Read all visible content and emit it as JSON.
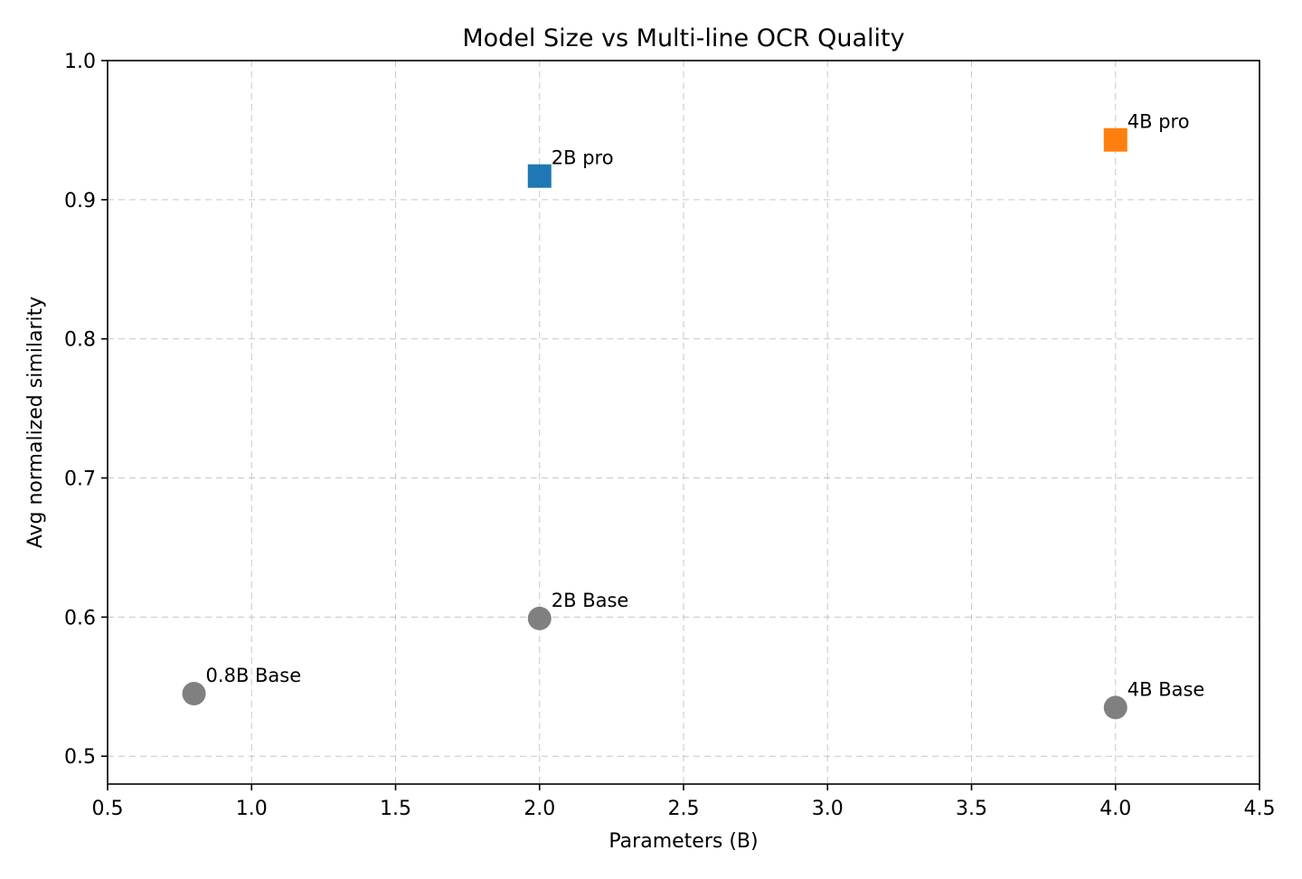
{
  "chart_data": {
    "type": "scatter",
    "title": "Model Size vs Multi-line OCR Quality",
    "xlabel": "Parameters (B)",
    "ylabel": "Avg normalized similarity",
    "xlim": [
      0.5,
      4.5
    ],
    "ylim": [
      0.48,
      1.0
    ],
    "xticks": [
      0.5,
      1.0,
      1.5,
      2.0,
      2.5,
      3.0,
      3.5,
      4.0,
      4.5
    ],
    "yticks": [
      0.5,
      0.6,
      0.7,
      0.8,
      0.9,
      1.0
    ],
    "xtick_labels": [
      "0.5",
      "1.0",
      "1.5",
      "2.0",
      "2.5",
      "3.0",
      "3.5",
      "4.0",
      "4.5"
    ],
    "ytick_labels": [
      "0.5",
      "0.6",
      "0.7",
      "0.8",
      "0.9",
      "1.0"
    ],
    "grid": true,
    "points": [
      {
        "label": "0.8B Base",
        "x": 0.8,
        "y": 0.545,
        "marker": "circle",
        "color": "#808080"
      },
      {
        "label": "2B Base",
        "x": 2.0,
        "y": 0.599,
        "marker": "circle",
        "color": "#808080"
      },
      {
        "label": "4B Base",
        "x": 4.0,
        "y": 0.535,
        "marker": "circle",
        "color": "#808080"
      },
      {
        "label": "2B pro",
        "x": 2.0,
        "y": 0.917,
        "marker": "square",
        "color": "#1f77b4"
      },
      {
        "label": "4B pro",
        "x": 4.0,
        "y": 0.943,
        "marker": "square",
        "color": "#ff7f0e"
      }
    ]
  }
}
